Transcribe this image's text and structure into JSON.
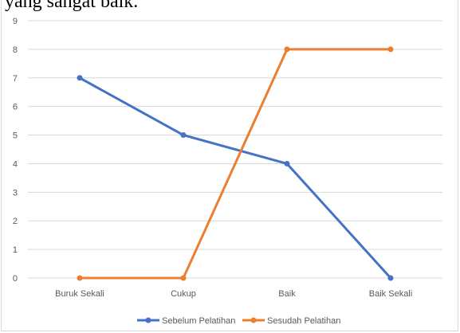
{
  "caption_fragment": "yang sangat baik.",
  "chart_data": {
    "type": "line",
    "categories": [
      "Buruk Sekali",
      "Cukup",
      "Baik",
      "Baik Sekali"
    ],
    "series": [
      {
        "name": "Sebelum Pelatihan",
        "values": [
          7,
          5,
          4,
          0
        ],
        "color": "#4472c4"
      },
      {
        "name": "Sesudah Pelatihan",
        "values": [
          0,
          0,
          8,
          8
        ],
        "color": "#ed7d31"
      }
    ],
    "ylim": [
      0,
      9
    ],
    "yticks": [
      "0",
      "1",
      "2",
      "3",
      "4",
      "5",
      "6",
      "7",
      "8",
      "9"
    ],
    "grid": true,
    "legend_position": "bottom",
    "gridline_color": "#d9d9d9"
  }
}
